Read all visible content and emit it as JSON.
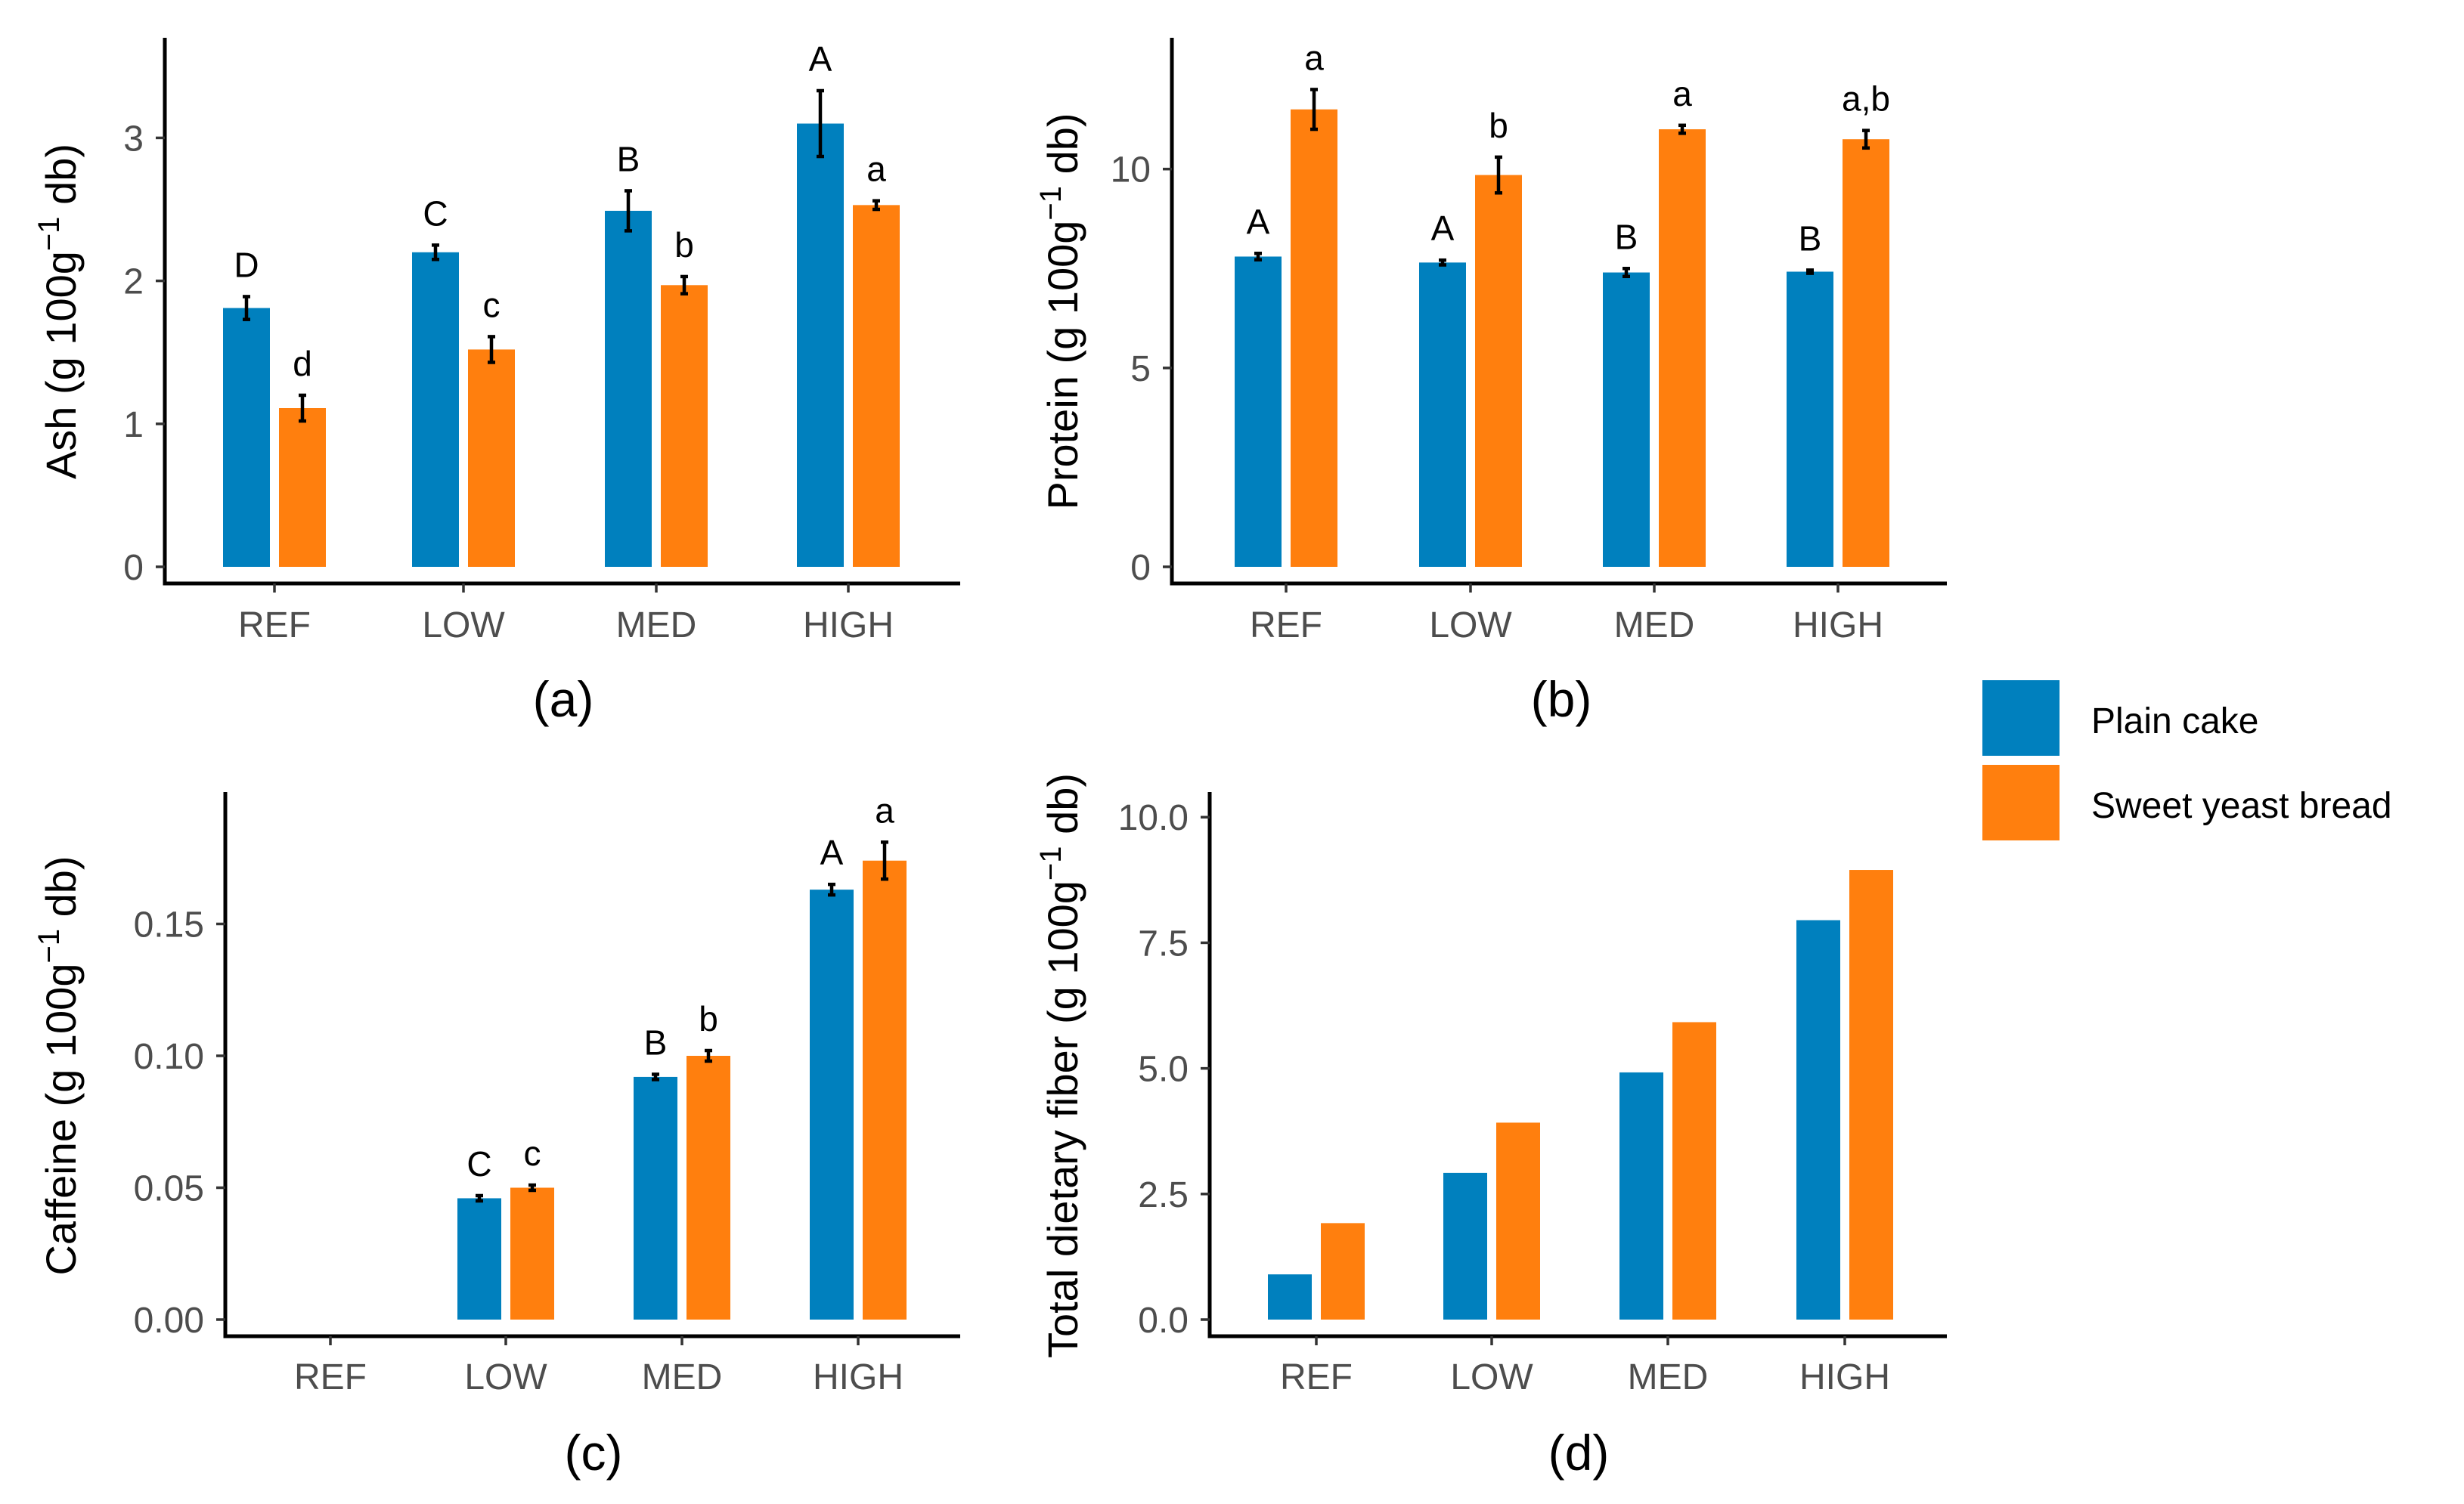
{
  "colors": {
    "plain": "#0080be",
    "sweet": "#ff7f0e"
  },
  "legend": {
    "items": [
      {
        "label": "Plain cake",
        "color": "#0080be"
      },
      {
        "label": "Sweet yeast bread",
        "color": "#ff7f0e"
      }
    ]
  },
  "chart_data": [
    {
      "panel": "(a)",
      "type": "bar",
      "ylabel": {
        "main": "Ash (g 100g",
        "sup": "−1",
        "post": " db)"
      },
      "categories": [
        "REF",
        "LOW",
        "MED",
        "HIGH"
      ],
      "ylim": [
        0,
        3.7
      ],
      "ticks": [
        0,
        1,
        2,
        3
      ],
      "tick_labels": [
        "0",
        "1",
        "2",
        "3"
      ],
      "series": [
        {
          "name": "Plain cake",
          "values": [
            1.81,
            2.2,
            2.49,
            3.1
          ],
          "errors": [
            0.08,
            0.05,
            0.14,
            0.23
          ],
          "letters": [
            "D",
            "C",
            "B",
            "A"
          ]
        },
        {
          "name": "Sweet yeast bread",
          "values": [
            1.11,
            1.52,
            1.97,
            2.53
          ],
          "errors": [
            0.09,
            0.09,
            0.06,
            0.03
          ],
          "letters": [
            "d",
            "c",
            "b",
            "a"
          ]
        }
      ]
    },
    {
      "panel": "(b)",
      "type": "bar",
      "ylabel": {
        "main": "Protein (g 100g",
        "sup": "−1",
        "post": " db)"
      },
      "categories": [
        "REF",
        "LOW",
        "MED",
        "HIGH"
      ],
      "ylim": [
        0,
        13.3
      ],
      "ticks": [
        0,
        5,
        10
      ],
      "tick_labels": [
        "0",
        "5",
        "10"
      ],
      "series": [
        {
          "name": "Plain cake",
          "values": [
            7.8,
            7.65,
            7.4,
            7.42
          ],
          "errors": [
            0.08,
            0.06,
            0.1,
            0.04
          ],
          "letters": [
            "A",
            "A",
            "B",
            "B"
          ]
        },
        {
          "name": "Sweet yeast bread",
          "values": [
            11.5,
            9.85,
            11.0,
            10.75
          ],
          "errors": [
            0.5,
            0.45,
            0.1,
            0.22
          ],
          "letters": [
            "a",
            "b",
            "a",
            "a,b"
          ]
        }
      ]
    },
    {
      "panel": "(c)",
      "type": "bar",
      "ylabel": {
        "main": "Caffeine (g 100g",
        "sup": "−1",
        "post": " db)"
      },
      "categories": [
        "REF",
        "LOW",
        "MED",
        "HIGH"
      ],
      "ylim": [
        0,
        0.2
      ],
      "ticks": [
        0,
        0.05,
        0.1,
        0.15
      ],
      "tick_labels": [
        "0.00",
        "0.05",
        "0.10",
        "0.15"
      ],
      "series": [
        {
          "name": "Plain cake",
          "values": [
            null,
            0.046,
            0.092,
            0.163
          ],
          "errors": [
            null,
            0.001,
            0.001,
            0.002
          ],
          "letters": [
            "",
            "C",
            "B",
            "A"
          ]
        },
        {
          "name": "Sweet yeast bread",
          "values": [
            null,
            0.05,
            0.1,
            0.174
          ],
          "errors": [
            null,
            0.001,
            0.002,
            0.007
          ],
          "letters": [
            "",
            "c",
            "b",
            "a"
          ]
        }
      ]
    },
    {
      "panel": "(d)",
      "type": "bar",
      "ylabel": {
        "main": "Total dietary fiber (g 100g",
        "sup": "−1",
        "post": " db)"
      },
      "categories": [
        "REF",
        "LOW",
        "MED",
        "HIGH"
      ],
      "ylim": [
        0,
        10.5
      ],
      "ticks": [
        0,
        2.5,
        5,
        7.5,
        10
      ],
      "tick_labels": [
        "0.0",
        "2.5",
        "5.0",
        "7.5",
        "10.0"
      ],
      "series": [
        {
          "name": "Plain cake",
          "values": [
            0.9,
            2.92,
            4.92,
            7.95
          ],
          "errors": [],
          "letters": []
        },
        {
          "name": "Sweet yeast bread",
          "values": [
            1.92,
            3.92,
            5.92,
            8.95
          ],
          "errors": [],
          "letters": []
        }
      ]
    }
  ]
}
